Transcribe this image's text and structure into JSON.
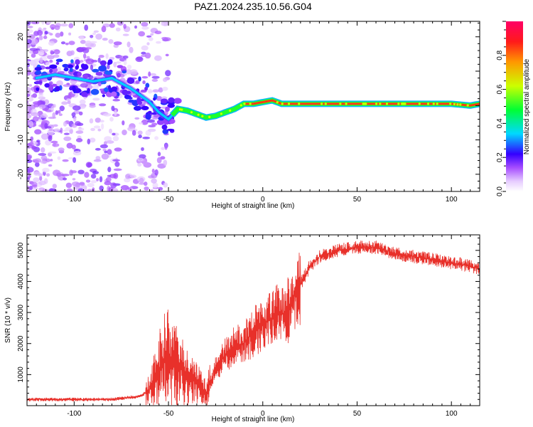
{
  "title": "PAZ1.2024.235.10.56.G04",
  "chart_data": [
    {
      "type": "heatmap",
      "xlabel": "Height of straight line (km)",
      "ylabel": "Frequency (Hz)",
      "xlim": [
        -125,
        115
      ],
      "ylim": [
        -25,
        24.5
      ],
      "xticks": [
        -100,
        -50,
        0,
        50,
        100
      ],
      "yticks": [
        -20,
        -10,
        0,
        10,
        20
      ],
      "colorbar": {
        "label": "Normalized spectral amplitude",
        "range": [
          0,
          1
        ],
        "ticks": [
          "0.0",
          "0.2",
          "0.4",
          "0.6",
          "0.8"
        ]
      },
      "ridge": {
        "x": [
          -120,
          -110,
          -100,
          -90,
          -80,
          -70,
          -60,
          -55,
          -50,
          -45,
          -40,
          -35,
          -30,
          -25,
          -20,
          -15,
          -10,
          -5,
          0,
          5,
          10,
          20,
          40,
          60,
          80,
          100,
          110,
          115
        ],
        "frequency": [
          8,
          9,
          8,
          7,
          8,
          5,
          1,
          -2,
          -4,
          -1,
          -1.5,
          -2.5,
          -3.5,
          -3,
          -2,
          -1,
          0.5,
          0.5,
          1,
          1.5,
          0.5,
          0.5,
          0.5,
          0.5,
          0.5,
          0.5,
          0,
          0.5
        ]
      }
    },
    {
      "type": "line",
      "xlabel": "Height of straight line (km)",
      "ylabel": "SNR (10 * v/v)",
      "xlim": [
        -125,
        115
      ],
      "ylim": [
        0,
        5500
      ],
      "xticks": [
        -100,
        -50,
        0,
        50,
        100
      ],
      "yticks": [
        1000,
        2000,
        3000,
        4000,
        5000
      ],
      "color": "#e8302a",
      "series": [
        {
          "x": [
            -125,
            -100,
            -80,
            -65,
            -60,
            -55,
            -52,
            -50,
            -48,
            -45,
            -42,
            -40,
            -35,
            -30,
            -28,
            -25,
            -20,
            -15,
            -10,
            -5,
            0,
            5,
            10,
            12,
            15,
            20,
            25,
            30,
            40,
            50,
            60,
            70,
            80,
            90,
            100,
            110,
            115
          ],
          "y": [
            200,
            200,
            200,
            300,
            500,
            1200,
            1500,
            1700,
            1300,
            1400,
            1000,
            1000,
            700,
            400,
            700,
            1200,
            1600,
            1900,
            2000,
            2400,
            2600,
            2800,
            3000,
            2800,
            3400,
            3900,
            4500,
            4800,
            5000,
            5100,
            5100,
            4900,
            4800,
            4700,
            4600,
            4500,
            4400
          ]
        }
      ]
    }
  ]
}
